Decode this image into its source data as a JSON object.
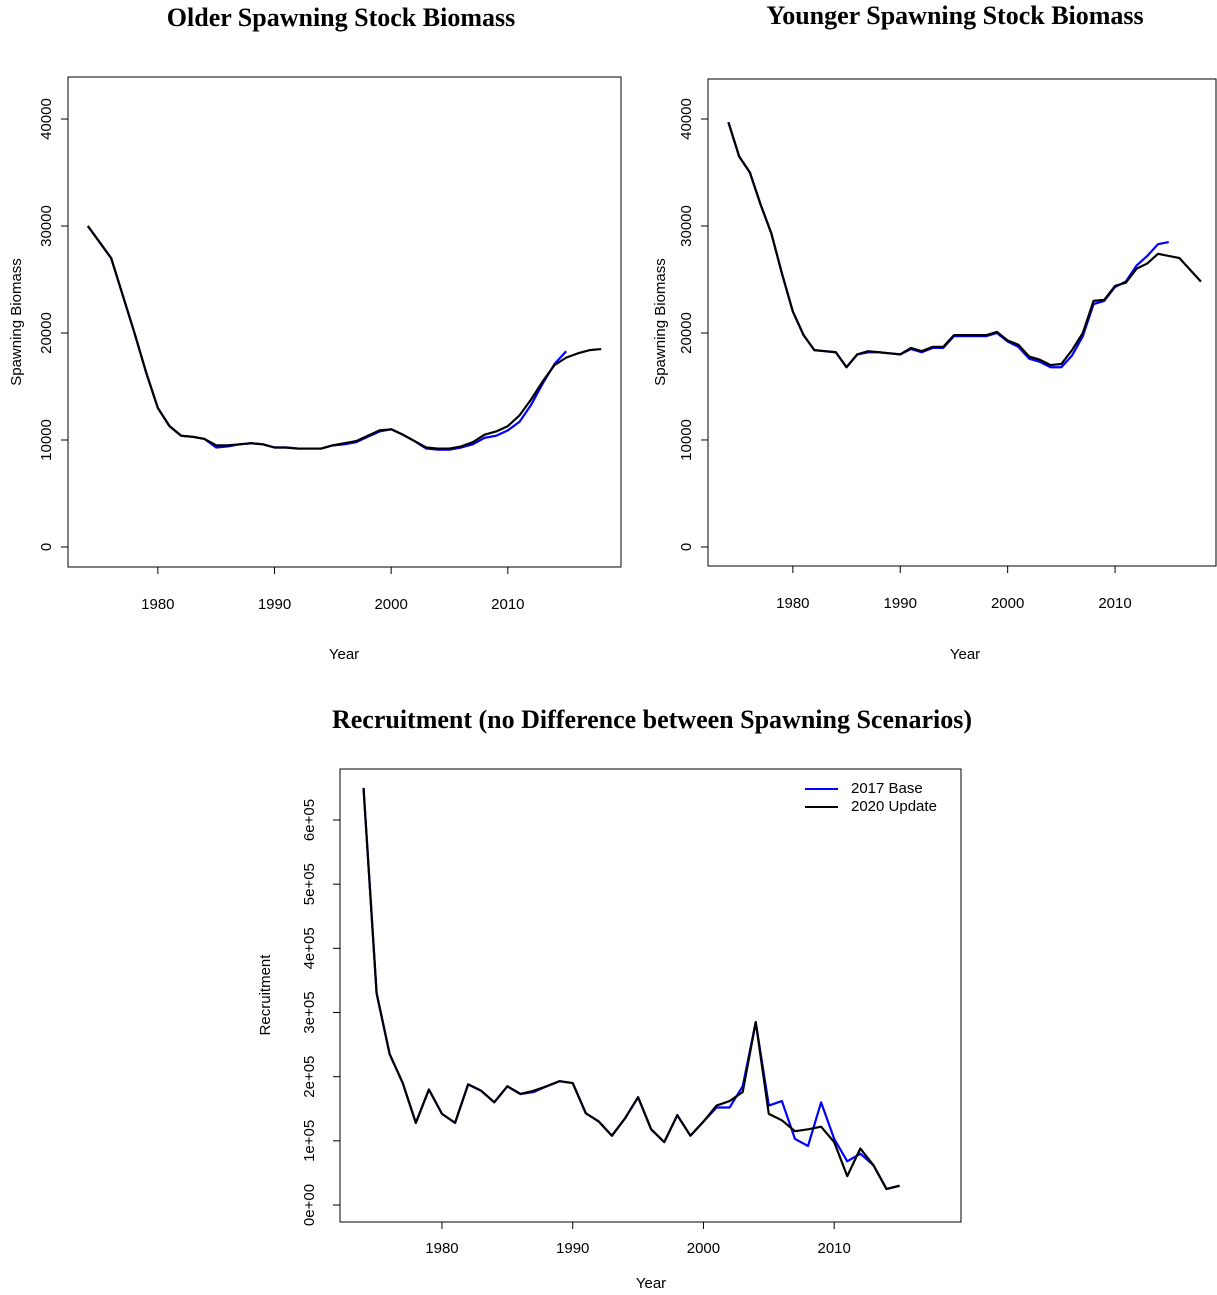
{
  "chart_data": [
    {
      "type": "line",
      "title": "Older Spawning Stock Biomass",
      "xlabel": "Year",
      "ylabel": "Spawning Biomass",
      "x": [
        1974,
        1975,
        1976,
        1977,
        1978,
        1979,
        1980,
        1981,
        1982,
        1983,
        1984,
        1985,
        1986,
        1987,
        1988,
        1989,
        1990,
        1991,
        1992,
        1993,
        1994,
        1995,
        1996,
        1997,
        1998,
        1999,
        2000,
        2001,
        2002,
        2003,
        2004,
        2005,
        2006,
        2007,
        2008,
        2009,
        2010,
        2011,
        2012,
        2013,
        2014,
        2015,
        2016,
        2017,
        2018
      ],
      "series": [
        {
          "color": "#0000ff",
          "values": [
            30000,
            28500,
            27000,
            23500,
            20000,
            16300,
            13000,
            11300,
            10400,
            10300,
            10100,
            9300,
            9400,
            9600,
            9700,
            9600,
            9300,
            9300,
            9200,
            9200,
            9200,
            9500,
            9600,
            9800,
            10300,
            10800,
            11000,
            10500,
            9900,
            9200,
            9100,
            9100,
            9300,
            9600,
            10200,
            10400,
            10900,
            11700,
            13300,
            15300,
            17100,
            18300,
            null,
            null,
            null
          ]
        },
        {
          "color": "#000000",
          "values": [
            30000,
            28500,
            27000,
            23500,
            20000,
            16300,
            13000,
            11300,
            10400,
            10300,
            10100,
            9500,
            9500,
            9600,
            9700,
            9600,
            9300,
            9300,
            9200,
            9200,
            9200,
            9500,
            9700,
            9900,
            10400,
            10900,
            11000,
            10500,
            9900,
            9300,
            9200,
            9200,
            9400,
            9800,
            10500,
            10800,
            11300,
            12300,
            13800,
            15500,
            17000,
            17700,
            18100,
            18400,
            18500
          ]
        }
      ],
      "xlim": [
        1972.3,
        2019.7
      ],
      "xticks": [
        1980,
        1990,
        2000,
        2010
      ],
      "ylim": [
        -1870,
        43930
      ],
      "yticks": [
        0,
        10000,
        20000,
        30000,
        40000
      ]
    },
    {
      "type": "line",
      "title": "Younger Spawning Stock Biomass",
      "xlabel": "Year",
      "ylabel": "Spawning Biomass",
      "x": [
        1974,
        1975,
        1976,
        1977,
        1978,
        1979,
        1980,
        1981,
        1982,
        1983,
        1984,
        1985,
        1986,
        1987,
        1988,
        1989,
        1990,
        1991,
        1992,
        1993,
        1994,
        1995,
        1996,
        1997,
        1998,
        1999,
        2000,
        2001,
        2002,
        2003,
        2004,
        2005,
        2006,
        2007,
        2008,
        2009,
        2010,
        2011,
        2012,
        2013,
        2014,
        2015,
        2016,
        2017,
        2018
      ],
      "series": [
        {
          "color": "#0000ff",
          "values": [
            39700,
            36500,
            35000,
            32000,
            29300,
            25500,
            22000,
            19800,
            18400,
            18300,
            18200,
            16800,
            18000,
            18200,
            18200,
            18100,
            18000,
            18500,
            18200,
            18600,
            18600,
            19700,
            19700,
            19700,
            19700,
            20000,
            19200,
            18700,
            17600,
            17300,
            16800,
            16800,
            17900,
            19700,
            22700,
            23000,
            24300,
            24800,
            26300,
            27200,
            28300,
            28500,
            null,
            null,
            null
          ]
        },
        {
          "color": "#000000",
          "values": [
            39700,
            36500,
            35000,
            32000,
            29300,
            25500,
            22000,
            19800,
            18400,
            18300,
            18200,
            16800,
            18000,
            18300,
            18200,
            18100,
            18000,
            18600,
            18300,
            18700,
            18700,
            19800,
            19800,
            19800,
            19800,
            20100,
            19300,
            18900,
            17800,
            17500,
            17000,
            17100,
            18400,
            20000,
            23000,
            23100,
            24400,
            24700,
            26000,
            26500,
            27400,
            27200,
            27000,
            25900,
            24800
          ]
        }
      ],
      "xlim": [
        1972.1,
        2019.4
      ],
      "xticks": [
        1980,
        1990,
        2000,
        2010
      ],
      "ylim": [
        -1780,
        43740
      ],
      "yticks": [
        0,
        10000,
        20000,
        30000,
        40000
      ]
    },
    {
      "type": "line",
      "title": "Recruitment (no Difference between Spawning Scenarios)",
      "xlabel": "Year",
      "ylabel": "Recruitment",
      "legend": "topright",
      "x": [
        1974,
        1975,
        1976,
        1977,
        1978,
        1979,
        1980,
        1981,
        1982,
        1983,
        1984,
        1985,
        1986,
        1987,
        1988,
        1989,
        1990,
        1991,
        1992,
        1993,
        1994,
        1995,
        1996,
        1997,
        1998,
        1999,
        2000,
        2001,
        2002,
        2003,
        2004,
        2005,
        2006,
        2007,
        2008,
        2009,
        2010,
        2011,
        2012,
        2013,
        2014,
        2015
      ],
      "series": [
        {
          "name": "2017 Base",
          "color": "#0000ff",
          "values": [
            650000,
            330000,
            235000,
            190000,
            128000,
            180000,
            142000,
            128000,
            188000,
            178000,
            160000,
            185000,
            173000,
            176000,
            185000,
            193000,
            190000,
            143000,
            130000,
            108000,
            135000,
            168000,
            118000,
            98000,
            140000,
            108000,
            130000,
            152000,
            152000,
            185000,
            285000,
            155000,
            162000,
            103000,
            92000,
            160000,
            103000,
            68000,
            80000,
            62000,
            25000,
            30000
          ]
        },
        {
          "name": "2020 Update",
          "color": "#000000",
          "values": [
            650000,
            330000,
            235000,
            190000,
            128000,
            180000,
            142000,
            128000,
            188000,
            178000,
            160000,
            185000,
            173000,
            178000,
            185000,
            193000,
            190000,
            143000,
            130000,
            108000,
            135000,
            168000,
            118000,
            98000,
            140000,
            108000,
            130000,
            155000,
            162000,
            176000,
            285000,
            142000,
            132000,
            115000,
            118000,
            122000,
            98000,
            45000,
            88000,
            62000,
            25000,
            30000
          ]
        }
      ],
      "xlim": [
        1972.2,
        2019.7
      ],
      "xticks": [
        1980,
        1990,
        2000,
        2010
      ],
      "ylim": [
        -26500,
        679500
      ],
      "yticks": [
        {
          "value": 0,
          "label": "0e+00"
        },
        {
          "value": 100000,
          "label": "1e+05"
        },
        {
          "value": 200000,
          "label": "2e+05"
        },
        {
          "value": 300000,
          "label": "3e+05"
        },
        {
          "value": 400000,
          "label": "4e+05"
        },
        {
          "value": 500000,
          "label": "5e+05"
        },
        {
          "value": 600000,
          "label": "6e+05"
        }
      ]
    }
  ]
}
